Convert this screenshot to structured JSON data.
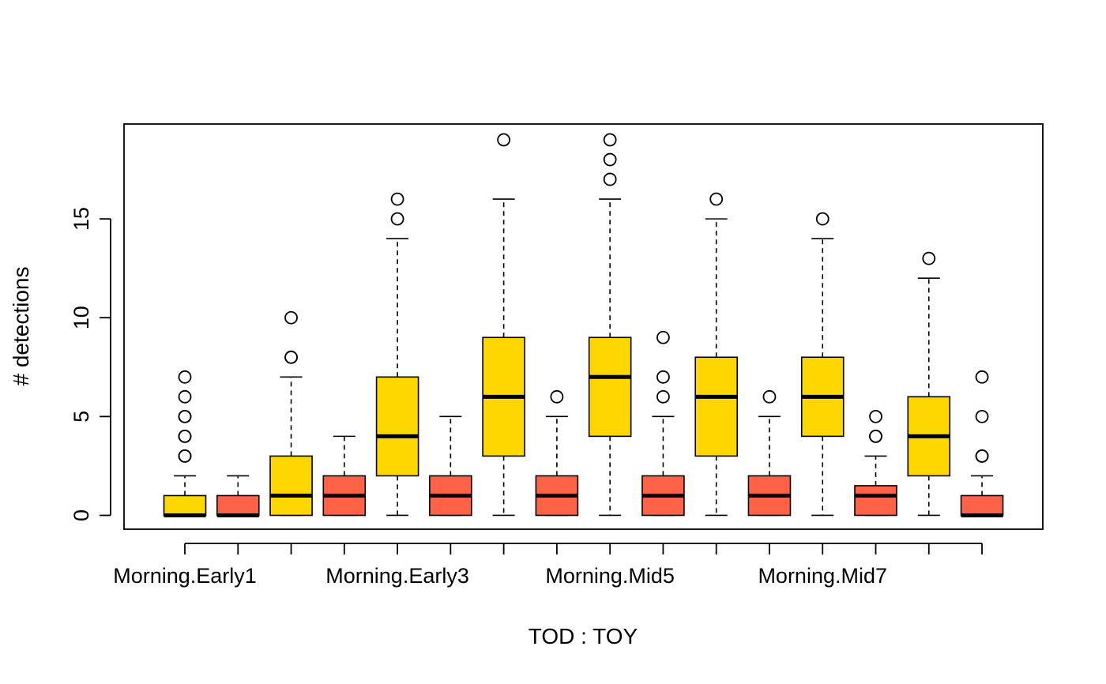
{
  "chart_data": {
    "type": "boxplot",
    "xlabel": "TOD : TOY",
    "ylabel": "# detections",
    "ylim": [
      -0.7,
      19.8
    ],
    "yticks": [
      0,
      5,
      10,
      15
    ],
    "grid": false,
    "colors": {
      "A": "#FFD700",
      "B": "#FF6347"
    },
    "categories": [
      "Morning.Early1",
      "",
      "",
      "",
      "Morning.Early3",
      "",
      "",
      "",
      "Morning.Mid5",
      "",
      "",
      "",
      "Morning.Mid7",
      "",
      "",
      ""
    ],
    "boxes": [
      {
        "color": "A",
        "whisker_low": 0,
        "q1": 0,
        "median": 0,
        "q3": 1,
        "whisker_high": 2,
        "outliers": [
          3,
          3,
          4,
          4,
          5,
          5,
          6,
          7
        ]
      },
      {
        "color": "B",
        "whisker_low": 0,
        "q1": 0,
        "median": 0,
        "q3": 1,
        "whisker_high": 2,
        "outliers": []
      },
      {
        "color": "A",
        "whisker_low": 0,
        "q1": 0,
        "median": 1,
        "q3": 3,
        "whisker_high": 7,
        "outliers": [
          8,
          8,
          10
        ]
      },
      {
        "color": "B",
        "whisker_low": 0,
        "q1": 0,
        "median": 1,
        "q3": 2,
        "whisker_high": 4,
        "outliers": []
      },
      {
        "color": "A",
        "whisker_low": 0,
        "q1": 2,
        "median": 4,
        "q3": 7,
        "whisker_high": 14,
        "outliers": [
          15,
          16
        ]
      },
      {
        "color": "B",
        "whisker_low": 0,
        "q1": 0,
        "median": 1,
        "q3": 2,
        "whisker_high": 5,
        "outliers": []
      },
      {
        "color": "A",
        "whisker_low": 0,
        "q1": 3,
        "median": 6,
        "q3": 9,
        "whisker_high": 16,
        "outliers": [
          19
        ]
      },
      {
        "color": "B",
        "whisker_low": 0,
        "q1": 0,
        "median": 1,
        "q3": 2,
        "whisker_high": 5,
        "outliers": [
          6
        ]
      },
      {
        "color": "A",
        "whisker_low": 0,
        "q1": 4,
        "median": 7,
        "q3": 9,
        "whisker_high": 16,
        "outliers": [
          17,
          18,
          19
        ]
      },
      {
        "color": "B",
        "whisker_low": 0,
        "q1": 0,
        "median": 1,
        "q3": 2,
        "whisker_high": 5,
        "outliers": [
          6,
          7,
          9
        ]
      },
      {
        "color": "A",
        "whisker_low": 0,
        "q1": 3,
        "median": 6,
        "q3": 8,
        "whisker_high": 15,
        "outliers": [
          16
        ]
      },
      {
        "color": "B",
        "whisker_low": 0,
        "q1": 0,
        "median": 1,
        "q3": 2,
        "whisker_high": 5,
        "outliers": [
          6
        ]
      },
      {
        "color": "A",
        "whisker_low": 0,
        "q1": 4,
        "median": 6,
        "q3": 8,
        "whisker_high": 14,
        "outliers": [
          15
        ]
      },
      {
        "color": "B",
        "whisker_low": 0,
        "q1": 0,
        "median": 1,
        "q3": 1.5,
        "whisker_high": 3,
        "outliers": [
          4,
          4,
          5
        ]
      },
      {
        "color": "A",
        "whisker_low": 0,
        "q1": 2,
        "median": 4,
        "q3": 6,
        "whisker_high": 12,
        "outliers": [
          13
        ]
      },
      {
        "color": "B",
        "whisker_low": 0,
        "q1": 0,
        "median": 0,
        "q3": 1,
        "whisker_high": 2,
        "outliers": [
          3,
          3,
          5,
          7
        ]
      }
    ]
  }
}
